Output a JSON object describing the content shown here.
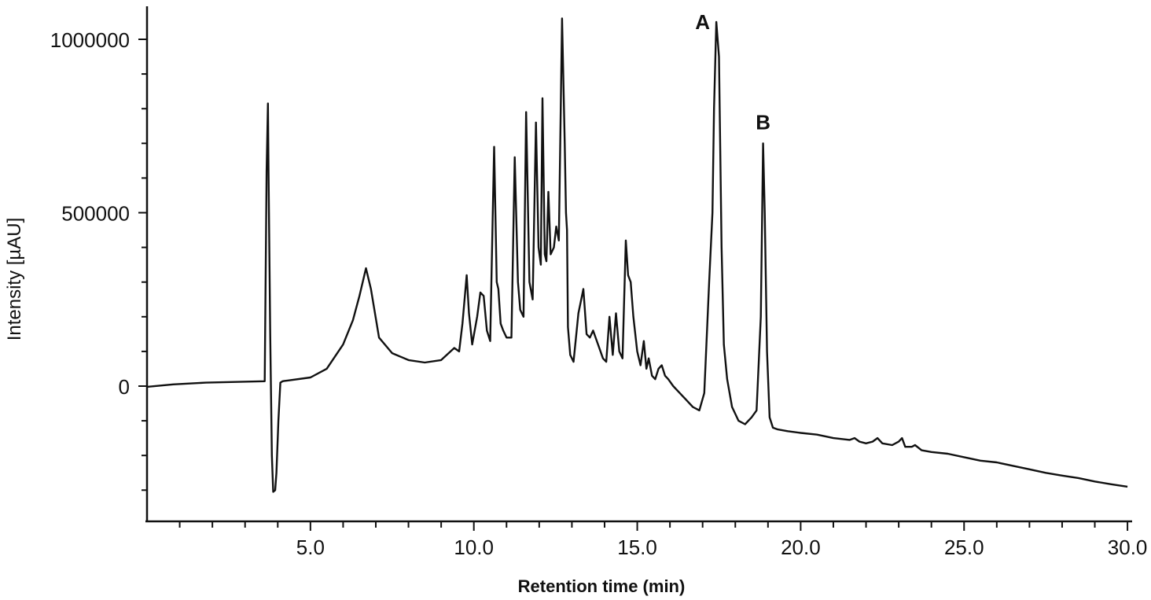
{
  "chart_data": {
    "type": "line",
    "title": "",
    "xlabel": "Retention time (min)",
    "ylabel": "Intensity [µAU]",
    "xlim": [
      0,
      30.1
    ],
    "ylim": [
      -385000,
      1100000
    ],
    "x_ticks": [
      5.0,
      10.0,
      15.0,
      20.0,
      25.0,
      30.0
    ],
    "x_tick_labels": [
      "5.0",
      "10.0",
      "15.0",
      "20.0",
      "25.0",
      "30.0"
    ],
    "x_minor_step": 1.0,
    "y_ticks": [
      0,
      500000,
      1000000
    ],
    "y_tick_labels": [
      "0",
      "500000",
      "1000000"
    ],
    "y_minor_step": 100000,
    "grid": false,
    "legend": "none",
    "line_color": "#111111",
    "series": [
      {
        "x": [
          0,
          0.8,
          1.8,
          3.6,
          3.66,
          3.7,
          3.72,
          3.77,
          3.82,
          3.86,
          3.92,
          3.96,
          4.02,
          4.08,
          4.15,
          4.2,
          4.3,
          5.0,
          5.5,
          6.0,
          6.3,
          6.5,
          6.7,
          6.85,
          7.1,
          7.5,
          8.0,
          8.5,
          9.0,
          9.4,
          9.55,
          9.65,
          9.78,
          9.85,
          9.95,
          10.1,
          10.2,
          10.3,
          10.4,
          10.5,
          10.62,
          10.7,
          10.75,
          10.82,
          10.9,
          11.0,
          11.15,
          11.25,
          11.35,
          11.42,
          11.52,
          11.6,
          11.7,
          11.8,
          11.9,
          11.98,
          12.05,
          12.1,
          12.17,
          12.22,
          12.28,
          12.35,
          12.45,
          12.52,
          12.6,
          12.7,
          12.78,
          12.82,
          12.85,
          12.88,
          12.95,
          13.05,
          13.2,
          13.35,
          13.45,
          13.55,
          13.65,
          13.8,
          13.95,
          14.05,
          14.15,
          14.25,
          14.35,
          14.45,
          14.55,
          14.65,
          14.72,
          14.8,
          14.88,
          15.0,
          15.1,
          15.2,
          15.28,
          15.35,
          15.45,
          15.55,
          15.65,
          15.75,
          15.85,
          15.95,
          16.1,
          16.3,
          16.5,
          16.7,
          16.9,
          17.05,
          17.2,
          17.3,
          17.35,
          17.42,
          17.5,
          17.58,
          17.65,
          17.75,
          17.9,
          18.1,
          18.3,
          18.5,
          18.65,
          18.78,
          18.85,
          18.9,
          18.97,
          19.05,
          19.15,
          19.3,
          19.6,
          20.0,
          20.5,
          21.0,
          21.5,
          21.65,
          21.8,
          22.0,
          22.2,
          22.35,
          22.5,
          22.8,
          23.0,
          23.1,
          23.2,
          23.4,
          23.5,
          23.7,
          24.0,
          24.5,
          25.0,
          25.5,
          26.0,
          26.5,
          27.0,
          27.5,
          28.0,
          28.5,
          29.0,
          29.5,
          30.0
        ],
        "y": [
          -2000,
          5000,
          10000,
          14000,
          620000,
          815000,
          610000,
          150000,
          -200000,
          -305000,
          -300000,
          -250000,
          -100000,
          10000,
          14000,
          15000,
          16000,
          25000,
          50000,
          120000,
          190000,
          260000,
          340000,
          280000,
          140000,
          95000,
          75000,
          68000,
          75000,
          110000,
          100000,
          180000,
          320000,
          210000,
          120000,
          200000,
          270000,
          260000,
          160000,
          130000,
          690000,
          300000,
          280000,
          180000,
          160000,
          140000,
          140000,
          660000,
          300000,
          220000,
          200000,
          790000,
          300000,
          250000,
          760000,
          400000,
          350000,
          830000,
          380000,
          360000,
          560000,
          380000,
          400000,
          460000,
          420000,
          1060000,
          700000,
          500000,
          450000,
          170000,
          90000,
          70000,
          210000,
          280000,
          150000,
          140000,
          160000,
          120000,
          80000,
          70000,
          200000,
          90000,
          210000,
          100000,
          80000,
          420000,
          320000,
          300000,
          200000,
          100000,
          60000,
          130000,
          50000,
          80000,
          30000,
          20000,
          50000,
          60000,
          30000,
          20000,
          0,
          -20000,
          -40000,
          -60000,
          -70000,
          -20000,
          300000,
          500000,
          800000,
          1050000,
          950000,
          400000,
          120000,
          20000,
          -60000,
          -100000,
          -110000,
          -90000,
          -70000,
          200000,
          700000,
          500000,
          100000,
          -90000,
          -120000,
          -125000,
          -130000,
          -135000,
          -140000,
          -150000,
          -155000,
          -150000,
          -160000,
          -165000,
          -160000,
          -150000,
          -165000,
          -170000,
          -160000,
          -150000,
          -175000,
          -175000,
          -170000,
          -185000,
          -190000,
          -195000,
          -205000,
          -215000,
          -220000,
          -230000,
          -240000,
          -250000,
          -258000,
          -265000,
          -275000,
          -283000,
          -290000
        ]
      }
    ],
    "annotations": [
      {
        "text": "A",
        "x": 17.0,
        "y": 1030000
      },
      {
        "text": "B",
        "x": 18.85,
        "y": 740000
      }
    ]
  }
}
